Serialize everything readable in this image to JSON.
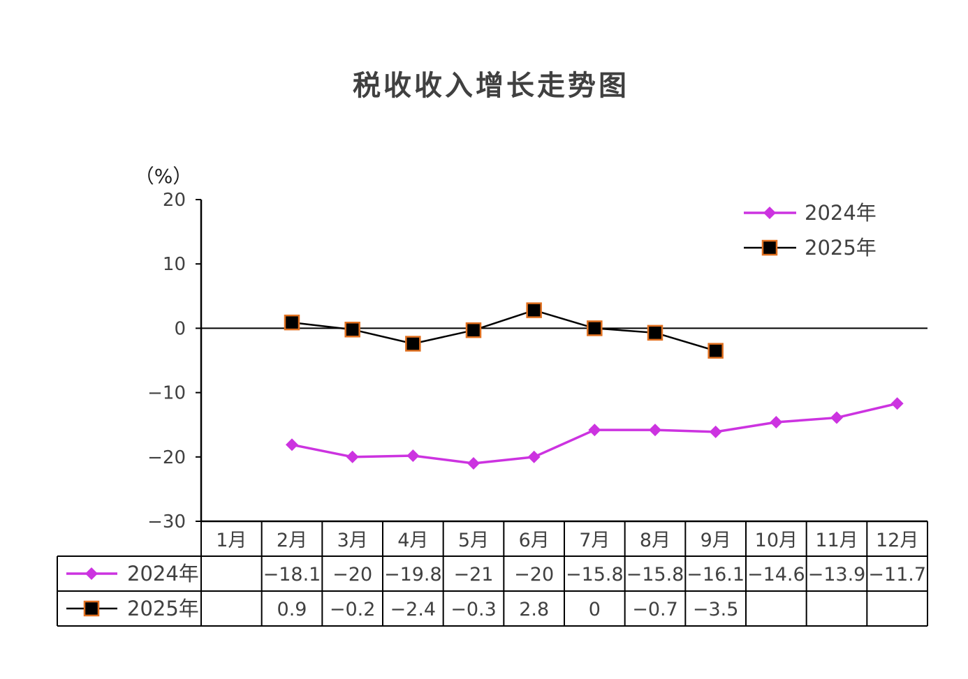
{
  "chart_data": {
    "type": "line",
    "title": "税收收入增长走势图",
    "ylabel": "（%）",
    "xlabel": "",
    "ylim": [
      -30,
      20
    ],
    "yticks": [
      20,
      10,
      0,
      -10,
      -20,
      -30
    ],
    "ytick_labels": [
      "20",
      "10",
      "0",
      "−10",
      "−20",
      "−30"
    ],
    "categories": [
      "1月",
      "2月",
      "3月",
      "4月",
      "5月",
      "6月",
      "7月",
      "8月",
      "9月",
      "10月",
      "11月",
      "12月"
    ],
    "legend_position": "top-right",
    "series": [
      {
        "name": "2024年",
        "color": "#cc33e0",
        "marker": "diamond",
        "values": [
          null,
          -18.1,
          -20,
          -19.8,
          -21,
          -20,
          -15.8,
          -15.8,
          -16.1,
          -14.6,
          -13.9,
          -11.7
        ],
        "table_labels": [
          "",
          "−18.1",
          "−20",
          "−19.8",
          "−21",
          "−20",
          "−15.8",
          "−15.8",
          "−16.1",
          "−14.6",
          "−13.9",
          "−11.7"
        ]
      },
      {
        "name": "2025年",
        "color": "#000000",
        "marker_edge": "#e07020",
        "marker": "square",
        "values": [
          null,
          0.9,
          -0.2,
          -2.4,
          -0.3,
          2.8,
          0,
          -0.7,
          -3.5,
          null,
          null,
          null
        ],
        "table_labels": [
          "",
          "0.9",
          "−0.2",
          "−2.4",
          "−0.3",
          "2.8",
          "0",
          "−0.7",
          "−3.5",
          "",
          "",
          ""
        ]
      }
    ]
  }
}
